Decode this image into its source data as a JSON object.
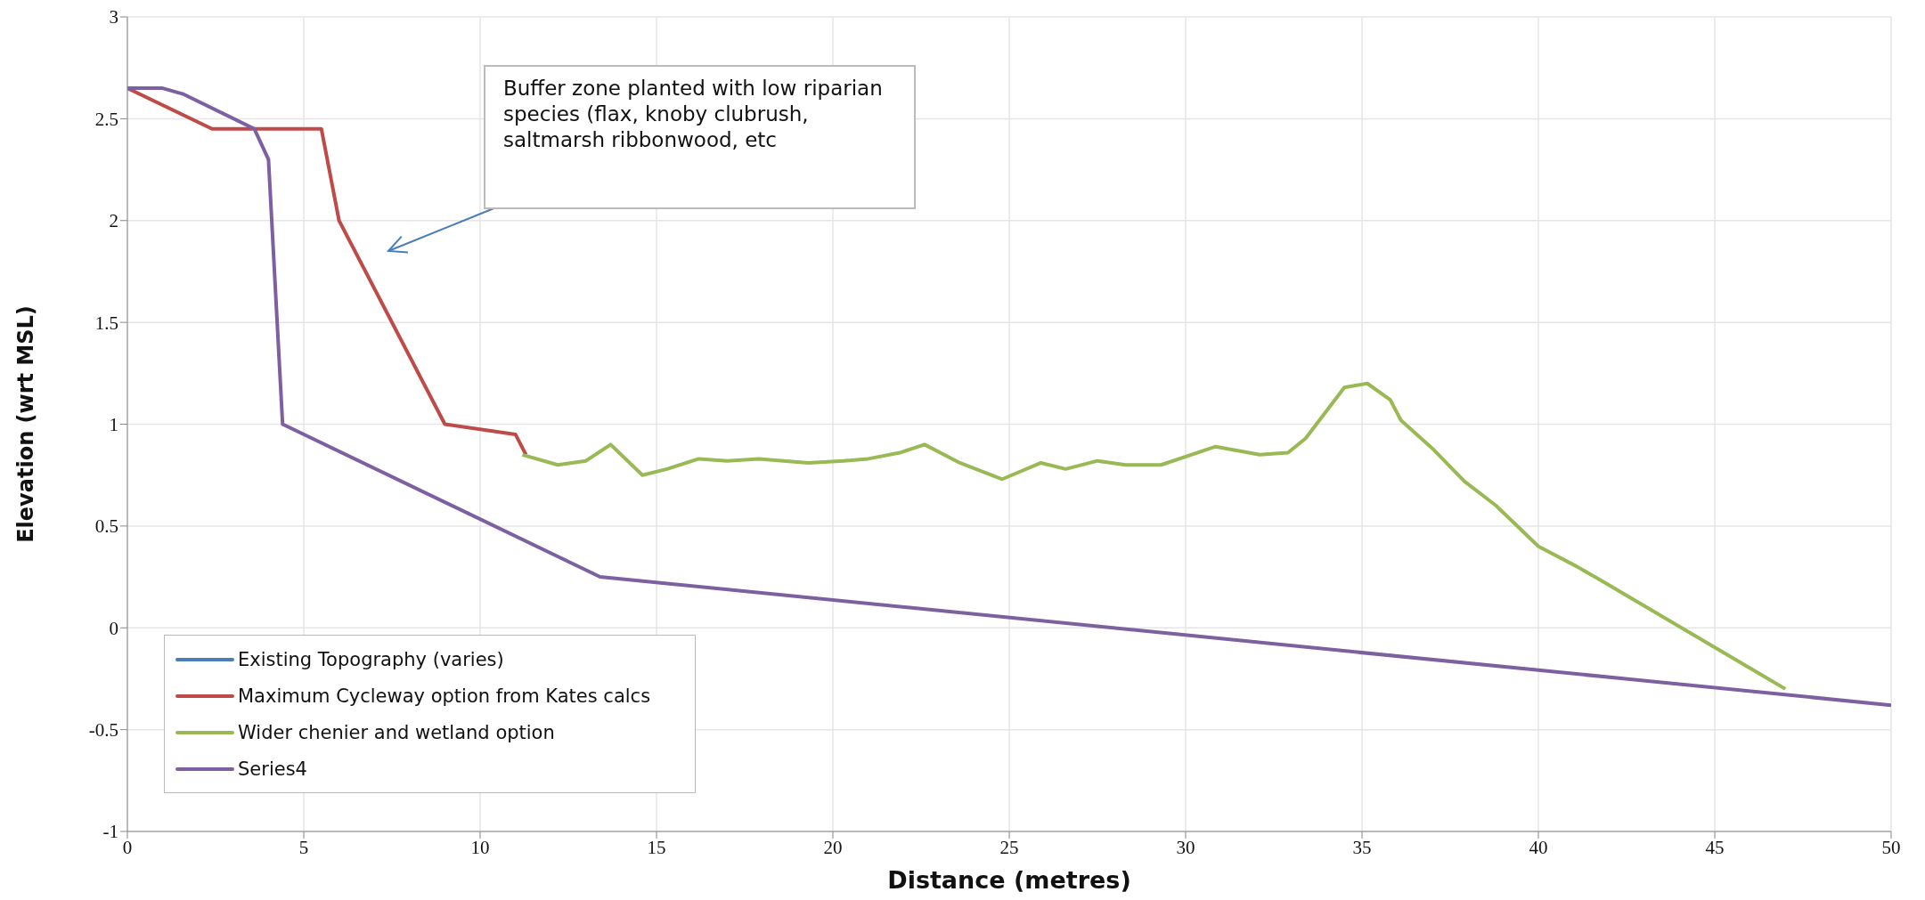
{
  "chart_data": {
    "type": "line",
    "xlabel": "Distance (metres)",
    "ylabel": "Elevation (wrt MSL)",
    "xlim": [
      0,
      50
    ],
    "xticks": [
      0,
      5,
      10,
      15,
      20,
      25,
      30,
      35,
      40,
      45,
      50
    ],
    "ylim": [
      -1,
      3
    ],
    "yticks": [
      -1,
      -0.5,
      0,
      0.5,
      1,
      1.5,
      2,
      2.5,
      3
    ],
    "grid": true,
    "legend": "bottom left",
    "marker": "none",
    "line_style": "solid",
    "annotations": [
      "Buffer zone planted with low riparian species  (flax, knoby clubrush, saltmarsh ribbonwood, etc"
    ],
    "series": [
      {
        "name": "Existing Topography (varies)",
        "color": "#4a7ebb"
      },
      {
        "name": "Maximum Cycleway option from Kates calcs",
        "color": "#be4b48",
        "x": [
          0,
          2.4,
          5.5,
          6,
          9,
          11,
          11.3
        ],
        "values": [
          2.65,
          2.45,
          2.45,
          2.0,
          1.0,
          0.95,
          0.85
        ]
      },
      {
        "name": "Wider chenier and wetland option",
        "color": "#98b954",
        "x": [
          11.2,
          12.2,
          13,
          13.7,
          14.6,
          15.3,
          16.2,
          17,
          17.9,
          19.3,
          20.3,
          21,
          21.9,
          22.6,
          23.6,
          24.8,
          25.9,
          26.6,
          27.5,
          28.3,
          29.3,
          30.85,
          32.1,
          32.9,
          33.4,
          34.5,
          35.15,
          35.8,
          36.1,
          37,
          37.9,
          38.8,
          40,
          41.1,
          41.5,
          41.7,
          47
        ],
        "values": [
          0.85,
          0.8,
          0.82,
          0.9,
          0.75,
          0.78,
          0.83,
          0.82,
          0.83,
          0.81,
          0.82,
          0.83,
          0.86,
          0.9,
          0.81,
          0.73,
          0.81,
          0.78,
          0.82,
          0.8,
          0.8,
          0.89,
          0.85,
          0.86,
          0.93,
          1.18,
          1.2,
          1.12,
          1.02,
          0.88,
          0.72,
          0.6,
          0.4,
          0.3,
          0.26,
          0.24,
          -0.3
        ]
      },
      {
        "name": "Series4",
        "color": "#7d60a0",
        "x": [
          0,
          1,
          1.6,
          3.6,
          4,
          4.4,
          13.4,
          50
        ],
        "values": [
          2.65,
          2.65,
          2.62,
          2.45,
          2.3,
          1.0,
          0.25,
          -0.38
        ]
      }
    ]
  }
}
